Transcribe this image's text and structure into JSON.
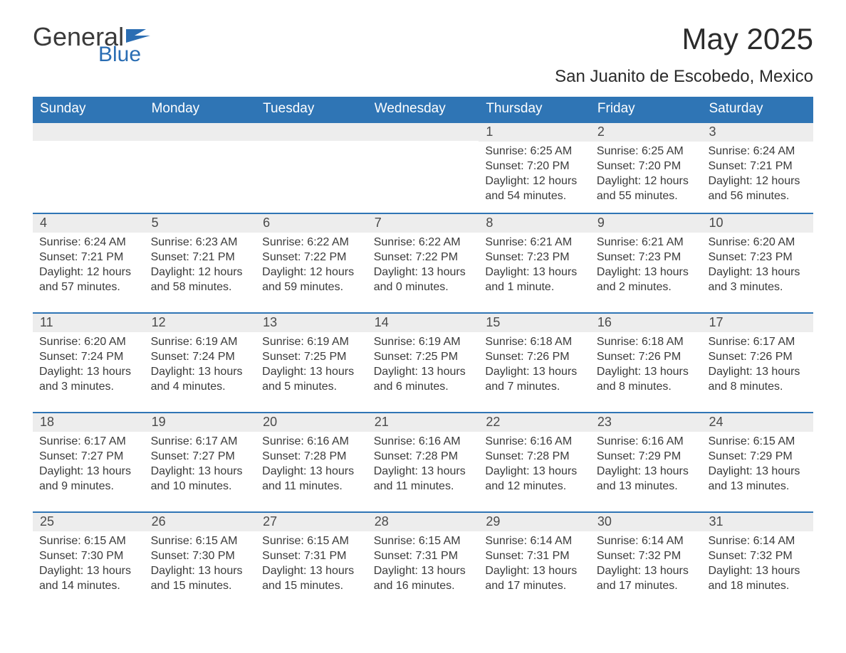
{
  "brand": {
    "word1": "General",
    "word2": "Blue",
    "accent_color": "#2a6db3",
    "text_color": "#3a3a3a"
  },
  "title": "May 2025",
  "location": "San Juanito de Escobedo, Mexico",
  "colors": {
    "header_bg": "#2f75b5",
    "header_fg": "#ffffff",
    "band_bg": "#ededed",
    "rule": "#2f75b5",
    "body_text": "#3a3a3a",
    "page_bg": "#ffffff"
  },
  "days_of_week": [
    "Sunday",
    "Monday",
    "Tuesday",
    "Wednesday",
    "Thursday",
    "Friday",
    "Saturday"
  ],
  "weeks": [
    [
      {
        "num": null
      },
      {
        "num": null
      },
      {
        "num": null
      },
      {
        "num": null
      },
      {
        "num": "1",
        "sunrise": "6:25 AM",
        "sunset": "7:20 PM",
        "daylight": "12 hours and 54 minutes."
      },
      {
        "num": "2",
        "sunrise": "6:25 AM",
        "sunset": "7:20 PM",
        "daylight": "12 hours and 55 minutes."
      },
      {
        "num": "3",
        "sunrise": "6:24 AM",
        "sunset": "7:21 PM",
        "daylight": "12 hours and 56 minutes."
      }
    ],
    [
      {
        "num": "4",
        "sunrise": "6:24 AM",
        "sunset": "7:21 PM",
        "daylight": "12 hours and 57 minutes."
      },
      {
        "num": "5",
        "sunrise": "6:23 AM",
        "sunset": "7:21 PM",
        "daylight": "12 hours and 58 minutes."
      },
      {
        "num": "6",
        "sunrise": "6:22 AM",
        "sunset": "7:22 PM",
        "daylight": "12 hours and 59 minutes."
      },
      {
        "num": "7",
        "sunrise": "6:22 AM",
        "sunset": "7:22 PM",
        "daylight": "13 hours and 0 minutes."
      },
      {
        "num": "8",
        "sunrise": "6:21 AM",
        "sunset": "7:23 PM",
        "daylight": "13 hours and 1 minute."
      },
      {
        "num": "9",
        "sunrise": "6:21 AM",
        "sunset": "7:23 PM",
        "daylight": "13 hours and 2 minutes."
      },
      {
        "num": "10",
        "sunrise": "6:20 AM",
        "sunset": "7:23 PM",
        "daylight": "13 hours and 3 minutes."
      }
    ],
    [
      {
        "num": "11",
        "sunrise": "6:20 AM",
        "sunset": "7:24 PM",
        "daylight": "13 hours and 3 minutes."
      },
      {
        "num": "12",
        "sunrise": "6:19 AM",
        "sunset": "7:24 PM",
        "daylight": "13 hours and 4 minutes."
      },
      {
        "num": "13",
        "sunrise": "6:19 AM",
        "sunset": "7:25 PM",
        "daylight": "13 hours and 5 minutes."
      },
      {
        "num": "14",
        "sunrise": "6:19 AM",
        "sunset": "7:25 PM",
        "daylight": "13 hours and 6 minutes."
      },
      {
        "num": "15",
        "sunrise": "6:18 AM",
        "sunset": "7:26 PM",
        "daylight": "13 hours and 7 minutes."
      },
      {
        "num": "16",
        "sunrise": "6:18 AM",
        "sunset": "7:26 PM",
        "daylight": "13 hours and 8 minutes."
      },
      {
        "num": "17",
        "sunrise": "6:17 AM",
        "sunset": "7:26 PM",
        "daylight": "13 hours and 8 minutes."
      }
    ],
    [
      {
        "num": "18",
        "sunrise": "6:17 AM",
        "sunset": "7:27 PM",
        "daylight": "13 hours and 9 minutes."
      },
      {
        "num": "19",
        "sunrise": "6:17 AM",
        "sunset": "7:27 PM",
        "daylight": "13 hours and 10 minutes."
      },
      {
        "num": "20",
        "sunrise": "6:16 AM",
        "sunset": "7:28 PM",
        "daylight": "13 hours and 11 minutes."
      },
      {
        "num": "21",
        "sunrise": "6:16 AM",
        "sunset": "7:28 PM",
        "daylight": "13 hours and 11 minutes."
      },
      {
        "num": "22",
        "sunrise": "6:16 AM",
        "sunset": "7:28 PM",
        "daylight": "13 hours and 12 minutes."
      },
      {
        "num": "23",
        "sunrise": "6:16 AM",
        "sunset": "7:29 PM",
        "daylight": "13 hours and 13 minutes."
      },
      {
        "num": "24",
        "sunrise": "6:15 AM",
        "sunset": "7:29 PM",
        "daylight": "13 hours and 13 minutes."
      }
    ],
    [
      {
        "num": "25",
        "sunrise": "6:15 AM",
        "sunset": "7:30 PM",
        "daylight": "13 hours and 14 minutes."
      },
      {
        "num": "26",
        "sunrise": "6:15 AM",
        "sunset": "7:30 PM",
        "daylight": "13 hours and 15 minutes."
      },
      {
        "num": "27",
        "sunrise": "6:15 AM",
        "sunset": "7:31 PM",
        "daylight": "13 hours and 15 minutes."
      },
      {
        "num": "28",
        "sunrise": "6:15 AM",
        "sunset": "7:31 PM",
        "daylight": "13 hours and 16 minutes."
      },
      {
        "num": "29",
        "sunrise": "6:14 AM",
        "sunset": "7:31 PM",
        "daylight": "13 hours and 17 minutes."
      },
      {
        "num": "30",
        "sunrise": "6:14 AM",
        "sunset": "7:32 PM",
        "daylight": "13 hours and 17 minutes."
      },
      {
        "num": "31",
        "sunrise": "6:14 AM",
        "sunset": "7:32 PM",
        "daylight": "13 hours and 18 minutes."
      }
    ]
  ],
  "labels": {
    "sunrise": "Sunrise: ",
    "sunset": "Sunset: ",
    "daylight": "Daylight: "
  }
}
